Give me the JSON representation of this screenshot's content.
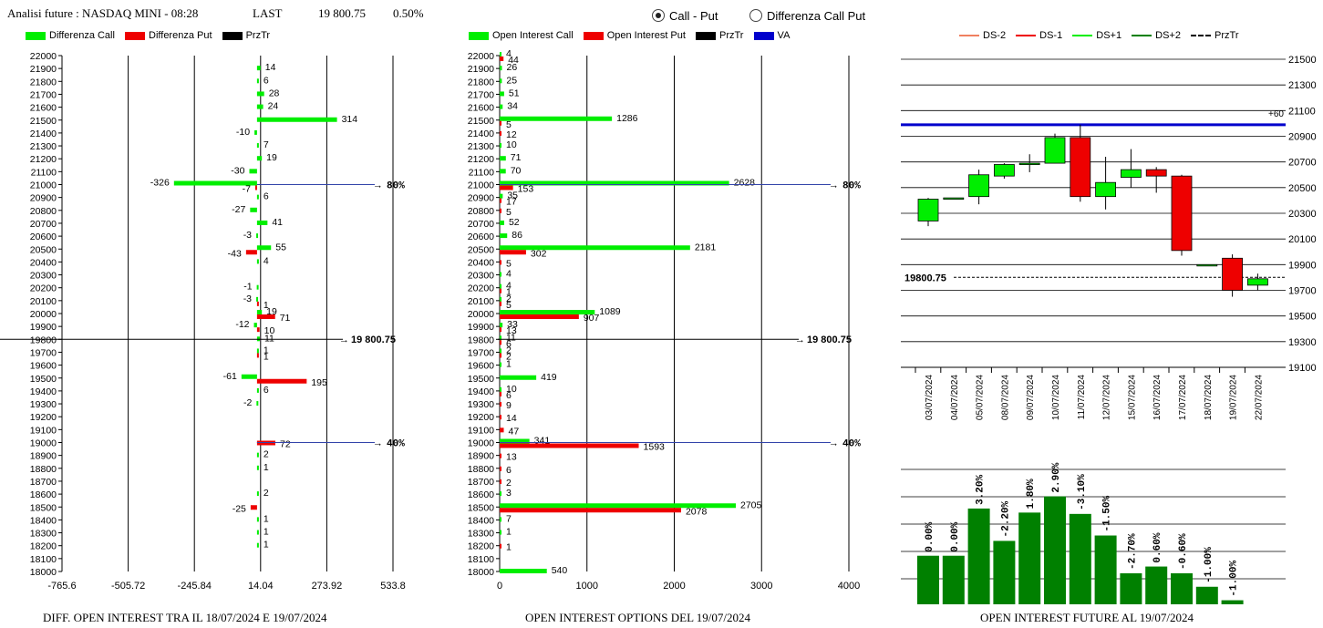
{
  "header": {
    "title": "Analisi future : NASDAQ MINI - 08:28",
    "last_label": "LAST",
    "last_value": "19 800.75",
    "change": "0.50%"
  },
  "mode_options": [
    {
      "label": "Call - Put",
      "selected": true
    },
    {
      "label": "Differenza Call Put",
      "selected": false
    }
  ],
  "colors": {
    "call": "#00ee00",
    "put": "#ee0000",
    "price": "#000000",
    "va": "#0000cc",
    "bar_future": "#008000"
  },
  "chart_data": [
    {
      "type": "bar",
      "orientation": "horizontal",
      "caption": "DIFF. OPEN INTEREST TRA IL 18/07/2024 E 19/07/2024",
      "legend": [
        "Differenza Call",
        "Differenza Put",
        "PrzTr"
      ],
      "strikes": [
        22000,
        21900,
        21800,
        21700,
        21600,
        21500,
        21400,
        21300,
        21200,
        21100,
        21000,
        20900,
        20800,
        20700,
        20600,
        20500,
        20400,
        20300,
        20200,
        20100,
        20000,
        19900,
        19800,
        19700,
        19600,
        19500,
        19400,
        19300,
        19200,
        19100,
        19000,
        18900,
        18800,
        18700,
        18600,
        18500,
        18400,
        18300,
        18200,
        18100,
        18000
      ],
      "series": [
        {
          "name": "Differenza Call",
          "values": {
            "21900": 14,
            "21800": 6,
            "21700": 28,
            "21600": 24,
            "21500": 314,
            "21400": -10,
            "21300": 7,
            "21200": 19,
            "21100": -30,
            "21000": -326,
            "20900": 6,
            "20800": -27,
            "20700": 41,
            "20600": -3,
            "20500": 55,
            "20400": 4,
            "20200": -1,
            "20100": -3,
            "20000": 19,
            "19900": -12,
            "19800": 11,
            "19700": 1,
            "19500": -61,
            "19400": 6,
            "19300": -2,
            "18900": 2,
            "18800": 1,
            "18600": 2,
            "18400": 1,
            "18300": 1,
            "18200": 1
          }
        },
        {
          "name": "Differenza Put",
          "values": {
            "21000": -7,
            "20500": -43,
            "20100": 1,
            "20000": 71,
            "19900": 10,
            "19700": 1,
            "19500": 195,
            "19000": 72,
            "18500": -25
          }
        }
      ],
      "x_ticks": [
        "-765.6",
        "-505.72",
        "-245.84",
        "14.04",
        "273.92",
        "533.8"
      ],
      "xlim": [
        -765.6,
        533.8
      ],
      "ylim": [
        18000,
        22000
      ],
      "price_label": "19 800.75",
      "price": 19800.75,
      "markers": [
        {
          "strike": 21000,
          "label": "80%"
        },
        {
          "strike": 19000,
          "label": "40%"
        }
      ]
    },
    {
      "type": "bar",
      "orientation": "horizontal",
      "caption": "OPEN INTEREST OPTIONS DEL 19/07/2024",
      "legend": [
        "Open Interest Call",
        "Open Interest Put",
        "PrzTr",
        "VA"
      ],
      "strikes": [
        22000,
        21900,
        21800,
        21700,
        21600,
        21500,
        21400,
        21300,
        21200,
        21100,
        21000,
        20900,
        20800,
        20700,
        20600,
        20500,
        20400,
        20300,
        20200,
        20100,
        20000,
        19900,
        19800,
        19700,
        19600,
        19500,
        19400,
        19300,
        19200,
        19100,
        19000,
        18900,
        18800,
        18700,
        18600,
        18500,
        18400,
        18300,
        18200,
        18100,
        18000
      ],
      "series": [
        {
          "name": "Open Interest Call",
          "values": {
            "22000": 4,
            "21900": 26,
            "21800": 25,
            "21700": 51,
            "21600": 34,
            "21500": 1286,
            "21300": 10,
            "21200": 71,
            "21100": 70,
            "21000": 2628,
            "20900": 35,
            "20700": 52,
            "20600": 86,
            "20500": 2181,
            "20300": 4,
            "20200": 4,
            "20100": 2,
            "20000": 1089,
            "19900": 33,
            "19800": 11,
            "19700": 2,
            "19600": 1,
            "19500": 419,
            "19400": 10,
            "19000": 341,
            "18600": 3,
            "18500": 2705,
            "18400": 7,
            "18300": 1,
            "18000": 540
          }
        },
        {
          "name": "Open Interest Put",
          "values": {
            "22000": 44,
            "21500": 5,
            "21400": 12,
            "21000": 153,
            "20900": 17,
            "20800": 5,
            "20500": 302,
            "20400": 5,
            "20200": 1,
            "20100": 5,
            "20000": 907,
            "19900": 13,
            "19800": 6,
            "19700": 2,
            "19400": 6,
            "19300": 9,
            "19200": 14,
            "19100": 47,
            "19000": 1593,
            "18900": 13,
            "18800": 6,
            "18700": 2,
            "18500": 2078,
            "18200": 1
          }
        }
      ],
      "x_ticks": [
        "0",
        "1000",
        "2000",
        "3000",
        "4000"
      ],
      "xlim": [
        0,
        4000
      ],
      "ylim": [
        18000,
        22000
      ],
      "price_label": "19 800.75",
      "price": 19800.75,
      "markers": [
        {
          "strike": 21000,
          "label": "80%"
        },
        {
          "strike": 19000,
          "label": "40%"
        }
      ]
    },
    {
      "type": "candlestick",
      "legend": [
        "DS-2",
        "DS-1",
        "DS+1",
        "DS+2",
        "PrzTr"
      ],
      "dates": [
        "03/07/2024",
        "04/07/2024",
        "05/07/2024",
        "08/07/2024",
        "09/07/2024",
        "10/07/2024",
        "11/07/2024",
        "12/07/2024",
        "15/07/2024",
        "16/07/2024",
        "17/07/2024",
        "18/07/2024",
        "19/07/2024",
        "22/07/2024"
      ],
      "candles": [
        {
          "o": 20240,
          "h": 20420,
          "l": 20200,
          "c": 20410
        },
        {
          "o": 20420,
          "h": 20420,
          "l": 20420,
          "c": 20420
        },
        {
          "o": 20430,
          "h": 20640,
          "l": 20370,
          "c": 20600
        },
        {
          "o": 20590,
          "h": 20690,
          "l": 20570,
          "c": 20680
        },
        {
          "o": 20680,
          "h": 20760,
          "l": 20620,
          "c": 20690
        },
        {
          "o": 20690,
          "h": 20920,
          "l": 20690,
          "c": 20890
        },
        {
          "o": 20890,
          "h": 20990,
          "l": 20390,
          "c": 20430
        },
        {
          "o": 20430,
          "h": 20740,
          "l": 20330,
          "c": 20540
        },
        {
          "o": 20580,
          "h": 20800,
          "l": 20500,
          "c": 20640
        },
        {
          "o": 20640,
          "h": 20660,
          "l": 20460,
          "c": 20590
        },
        {
          "o": 20590,
          "h": 20600,
          "l": 19970,
          "c": 20010
        },
        {
          "o": 19900,
          "h": 19900,
          "l": 19900,
          "c": 19900
        },
        {
          "o": 19950,
          "h": 19980,
          "l": 19650,
          "c": 19700
        },
        {
          "o": 19740,
          "h": 19830,
          "l": 19700,
          "c": 19790
        }
      ],
      "y_ticks": [
        "21500",
        "21300",
        "21100",
        "20900",
        "20700",
        "20500",
        "20300",
        "20100",
        "19900",
        "19700",
        "19500",
        "19300",
        "19100"
      ],
      "ylim": [
        19000,
        21600
      ],
      "va_level": 20990,
      "va_label": "+60",
      "price_label": "19800.75",
      "price": 19800.75
    },
    {
      "type": "bar",
      "caption": "OPEN INTEREST FUTURE AL 19/07/2024",
      "categories": [
        "03/07/2024",
        "04/07/2024",
        "05/07/2024",
        "08/07/2024",
        "09/07/2024",
        "10/07/2024",
        "11/07/2024",
        "12/07/2024",
        "15/07/2024",
        "16/07/2024",
        "17/07/2024",
        "18/07/2024",
        "19/07/2024"
      ],
      "values": [
        0.0,
        0.0,
        3.2,
        -2.2,
        1.8,
        2.9,
        -3.1,
        -1.5,
        -2.7,
        0.6,
        -0.6,
        -1.0,
        -1.0
      ],
      "value_labels": [
        "0.00%",
        "0.00%",
        "3.20%",
        "-2.20%",
        "1.80%",
        "2.90%",
        "-3.10%",
        "-1.50%",
        "-2.70%",
        "0.60%",
        "-0.60%",
        "-1.00%",
        "-1.00%"
      ],
      "heights_relative": [
        0.36,
        0.36,
        0.71,
        0.47,
        0.68,
        0.8,
        0.67,
        0.51,
        0.23,
        0.28,
        0.23,
        0.13,
        0.03
      ]
    }
  ]
}
